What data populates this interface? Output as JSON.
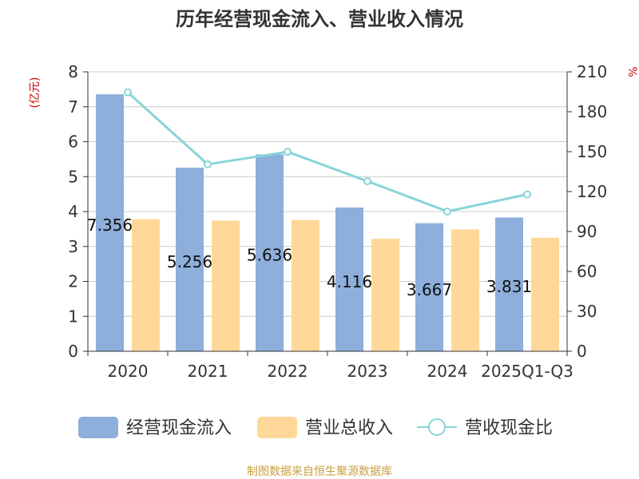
{
  "chart_data": {
    "type": "bar",
    "title": "历年经营现金流入、营业收入情况",
    "left_axis_unit": "(亿元)",
    "right_axis_unit": "%",
    "categories": [
      "2020",
      "2021",
      "2022",
      "2023",
      "2024",
      "2025Q1-Q3"
    ],
    "y_left": {
      "min": 0,
      "max": 8,
      "ticks": [
        0,
        1,
        2,
        3,
        4,
        5,
        6,
        7,
        8
      ]
    },
    "y_right": {
      "min": 0,
      "max": 210,
      "ticks": [
        0,
        30,
        60,
        90,
        120,
        150,
        180,
        210
      ]
    },
    "grid": true,
    "legend_position": "bottom",
    "series": [
      {
        "name": "经营现金流入",
        "type": "bar",
        "axis": "left",
        "color": "#8eaedb",
        "values": [
          7.356,
          5.256,
          5.636,
          4.116,
          3.667,
          3.831
        ],
        "labels": [
          "7.356",
          "5.256",
          "5.636",
          "4.116",
          "3.667",
          "3.831"
        ]
      },
      {
        "name": "营业总收入",
        "type": "bar",
        "axis": "left",
        "color": "#ffd899",
        "values": [
          3.78,
          3.74,
          3.76,
          3.22,
          3.49,
          3.25
        ]
      },
      {
        "name": "营收现金比",
        "type": "line",
        "axis": "right",
        "color": "#88d4d8",
        "values": [
          194.6,
          140.5,
          149.9,
          127.8,
          105.1,
          117.9
        ]
      }
    ],
    "footer": "制图数据来自恒生聚源数据库"
  }
}
